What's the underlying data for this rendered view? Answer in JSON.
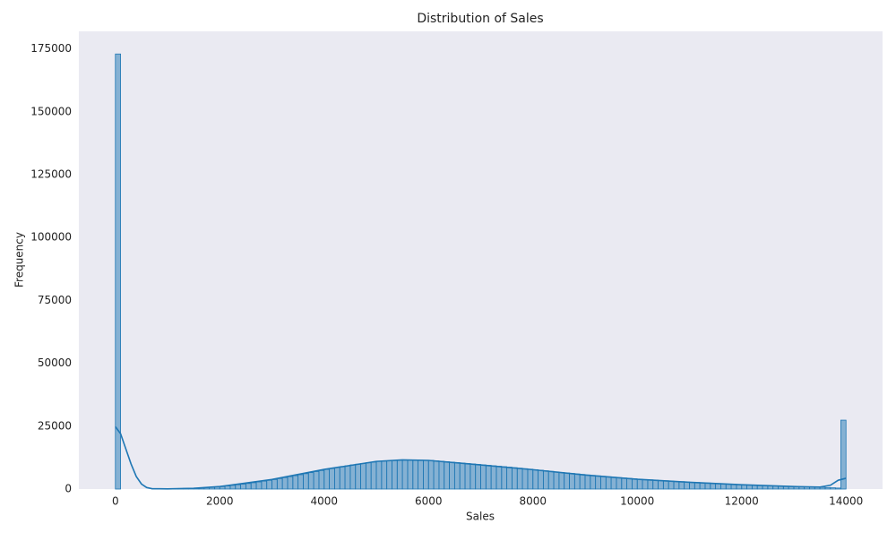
{
  "chart_data": {
    "type": "histogram",
    "title": "Distribution of Sales",
    "x_label": "Sales",
    "y_label": "Frequency",
    "color": "#1f77b4",
    "grid": false,
    "bins": [
      0,
      100,
      200,
      300,
      400,
      500,
      600,
      700,
      800,
      900,
      1000,
      1100,
      1200,
      1300,
      1400,
      1500,
      1600,
      1700,
      1800,
      1900,
      2000,
      2100,
      2200,
      2300,
      2400,
      2500,
      2600,
      2700,
      2800,
      2900,
      3000,
      3100,
      3200,
      3300,
      3400,
      3500,
      3600,
      3700,
      3800,
      3900,
      4000,
      4100,
      4200,
      4300,
      4400,
      4500,
      4600,
      4700,
      4800,
      4900,
      5000,
      5100,
      5200,
      5300,
      5400,
      5500,
      5600,
      5700,
      5800,
      5900,
      6000,
      6100,
      6200,
      6300,
      6400,
      6500,
      6600,
      6700,
      6800,
      6900,
      7000,
      7100,
      7200,
      7300,
      7400,
      7500,
      7600,
      7700,
      7800,
      7900,
      8000,
      8100,
      8200,
      8300,
      8400,
      8500,
      8600,
      8700,
      8800,
      8900,
      9000,
      9100,
      9200,
      9300,
      9400,
      9500,
      9600,
      9700,
      9800,
      9900,
      10000,
      10100,
      10200,
      10300,
      10400,
      10500,
      10600,
      10700,
      10800,
      10900,
      11000,
      11100,
      11200,
      11300,
      11400,
      11500,
      11600,
      11700,
      11800,
      11900,
      12000,
      12100,
      12200,
      12300,
      12400,
      12500,
      12600,
      12700,
      12800,
      12900,
      13000,
      13100,
      13200,
      13300,
      13400,
      13500,
      13600,
      13700,
      13800,
      13900,
      14000
    ],
    "values": [
      173000,
      0,
      0,
      0,
      0,
      0,
      0,
      10,
      30,
      60,
      100,
      160,
      220,
      280,
      340,
      400,
      520,
      640,
      760,
      880,
      1000,
      1240,
      1480,
      1720,
      1960,
      2200,
      2520,
      2840,
      3160,
      3480,
      3800,
      4180,
      4560,
      4940,
      5320,
      5700,
      6120,
      6540,
      6960,
      7380,
      7800,
      8160,
      8520,
      8880,
      9240,
      9600,
      9880,
      10160,
      10440,
      10720,
      11000,
      11120,
      11240,
      11360,
      11480,
      11600,
      11560,
      11520,
      11480,
      11440,
      11400,
      11220,
      11040,
      10860,
      10680,
      10500,
      10320,
      10140,
      9960,
      9780,
      9600,
      9420,
      9240,
      9060,
      8880,
      8700,
      8500,
      8300,
      8100,
      7900,
      7700,
      7480,
      7260,
      7040,
      6820,
      6600,
      6400,
      6200,
      6000,
      5800,
      5600,
      5420,
      5240,
      5060,
      4880,
      4700,
      4540,
      4380,
      4220,
      4060,
      3900,
      3780,
      3660,
      3540,
      3420,
      3300,
      3180,
      3060,
      2940,
      2820,
      2700,
      2600,
      2500,
      2400,
      2300,
      2200,
      2100,
      2000,
      1900,
      1800,
      1700,
      1620,
      1540,
      1460,
      1380,
      1300,
      1240,
      1180,
      1120,
      1060,
      1000,
      940,
      880,
      820,
      760,
      700,
      600,
      500,
      400,
      27400
    ],
    "kde": {
      "x": [
        0,
        100,
        200,
        300,
        400,
        500,
        600,
        700,
        1000,
        1500,
        2000,
        3000,
        4000,
        5000,
        5500,
        6000,
        7000,
        8000,
        9000,
        10000,
        11000,
        12000,
        13000,
        13500,
        13700,
        13850,
        14000
      ],
      "values": [
        24800,
        22000,
        16000,
        10000,
        5000,
        2000,
        600,
        150,
        50,
        300,
        1000,
        3800,
        7800,
        11000,
        11600,
        11400,
        9600,
        7700,
        5600,
        3900,
        2700,
        1700,
        1000,
        800,
        1500,
        3500,
        4300
      ]
    },
    "xlim": [
      -700,
      14700
    ],
    "ylim": [
      0,
      182000
    ],
    "xticks": [
      0,
      2000,
      4000,
      6000,
      8000,
      10000,
      12000,
      14000
    ],
    "yticks": [
      0,
      25000,
      50000,
      75000,
      100000,
      125000,
      150000,
      175000
    ]
  }
}
